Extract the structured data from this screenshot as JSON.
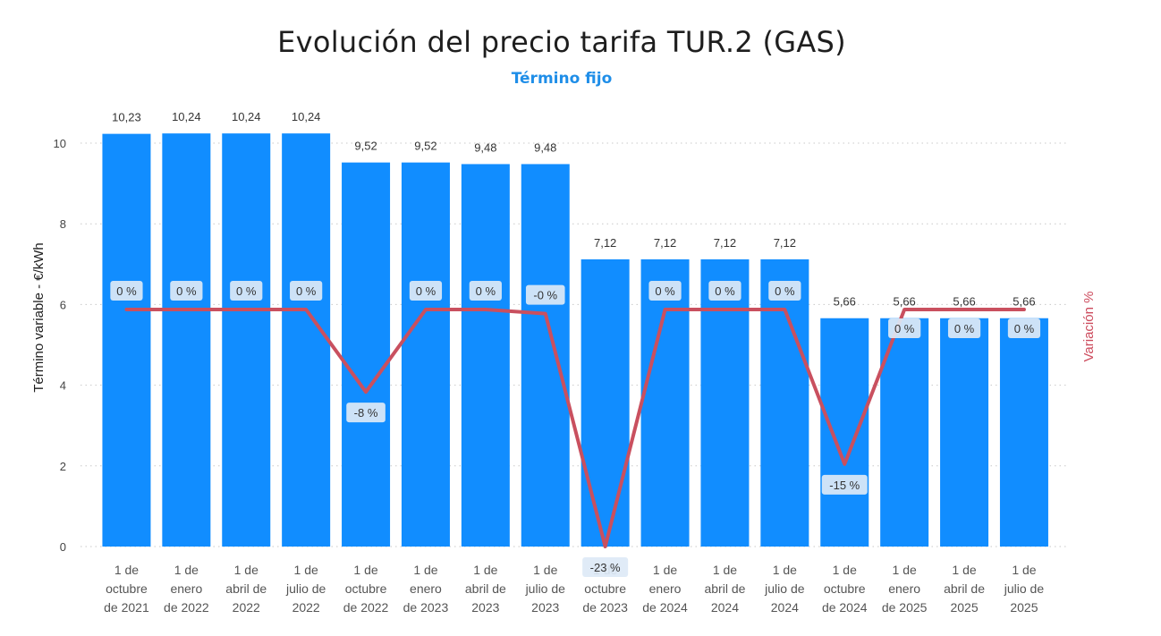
{
  "header": {
    "title": "Evolución del precio tarifa TUR.2 (GAS)",
    "subtitle": "Término fijo"
  },
  "colors": {
    "bar": "#118dff",
    "line": "#c9505f",
    "subtitle": "#1f8ee8",
    "label_box": "#dde9f6"
  },
  "chart_data": {
    "type": "bar",
    "categories": [
      [
        "1 de",
        "octubre",
        "de 2021"
      ],
      [
        "1 de",
        "enero",
        "de 2022"
      ],
      [
        "1 de",
        "abril de",
        "2022"
      ],
      [
        "1 de",
        "julio de",
        "2022"
      ],
      [
        "1 de",
        "octubre",
        "de 2022"
      ],
      [
        "1 de",
        "enero",
        "de 2023"
      ],
      [
        "1 de",
        "abril de",
        "2023"
      ],
      [
        "1 de",
        "julio de",
        "2023"
      ],
      [
        "1 de",
        "octubre",
        "de 2023"
      ],
      [
        "1 de",
        "enero",
        "de 2024"
      ],
      [
        "1 de",
        "abril de",
        "2024"
      ],
      [
        "1 de",
        "julio de",
        "2024"
      ],
      [
        "1 de",
        "octubre",
        "de 2024"
      ],
      [
        "1 de",
        "enero",
        "de 2025"
      ],
      [
        "1 de",
        "abril de",
        "2025"
      ],
      [
        "1 de",
        "julio de",
        "2025"
      ]
    ],
    "series": [
      {
        "values": [
          10.23,
          10.24,
          10.24,
          10.24,
          9.52,
          9.52,
          9.48,
          9.48,
          7.12,
          7.12,
          7.12,
          7.12,
          5.66,
          5.66,
          5.66,
          5.66
        ],
        "labels": [
          "10,23",
          "10,24",
          "10,24",
          "10,24",
          "9,52",
          "9,52",
          "9,48",
          "9,48",
          "7,12",
          "7,12",
          "7,12",
          "7,12",
          "5,66",
          "5,66",
          "5,66",
          "5,66"
        ]
      },
      {
        "type": "line",
        "axis": "secondary",
        "values": [
          0,
          0,
          0,
          0,
          -8,
          0,
          0,
          -0.4,
          -23,
          0,
          0,
          0,
          -15,
          0,
          0,
          0
        ],
        "labels": [
          "0 %",
          "0 %",
          "0 %",
          "0 %",
          "-8 %",
          "0 %",
          "0 %",
          "-0 %",
          "-23 %",
          "0 %",
          "0 %",
          "0 %",
          "-15 %",
          "0 %",
          "0 %",
          "0 %"
        ]
      }
    ],
    "ylabel": "Término variable - €/kWh",
    "y2label": "Variación %",
    "ylim": [
      0,
      10
    ],
    "yticks": [
      "0",
      "2",
      "4",
      "6",
      "8",
      "10"
    ],
    "y2lim": [
      -23,
      0
    ],
    "grid": true
  }
}
